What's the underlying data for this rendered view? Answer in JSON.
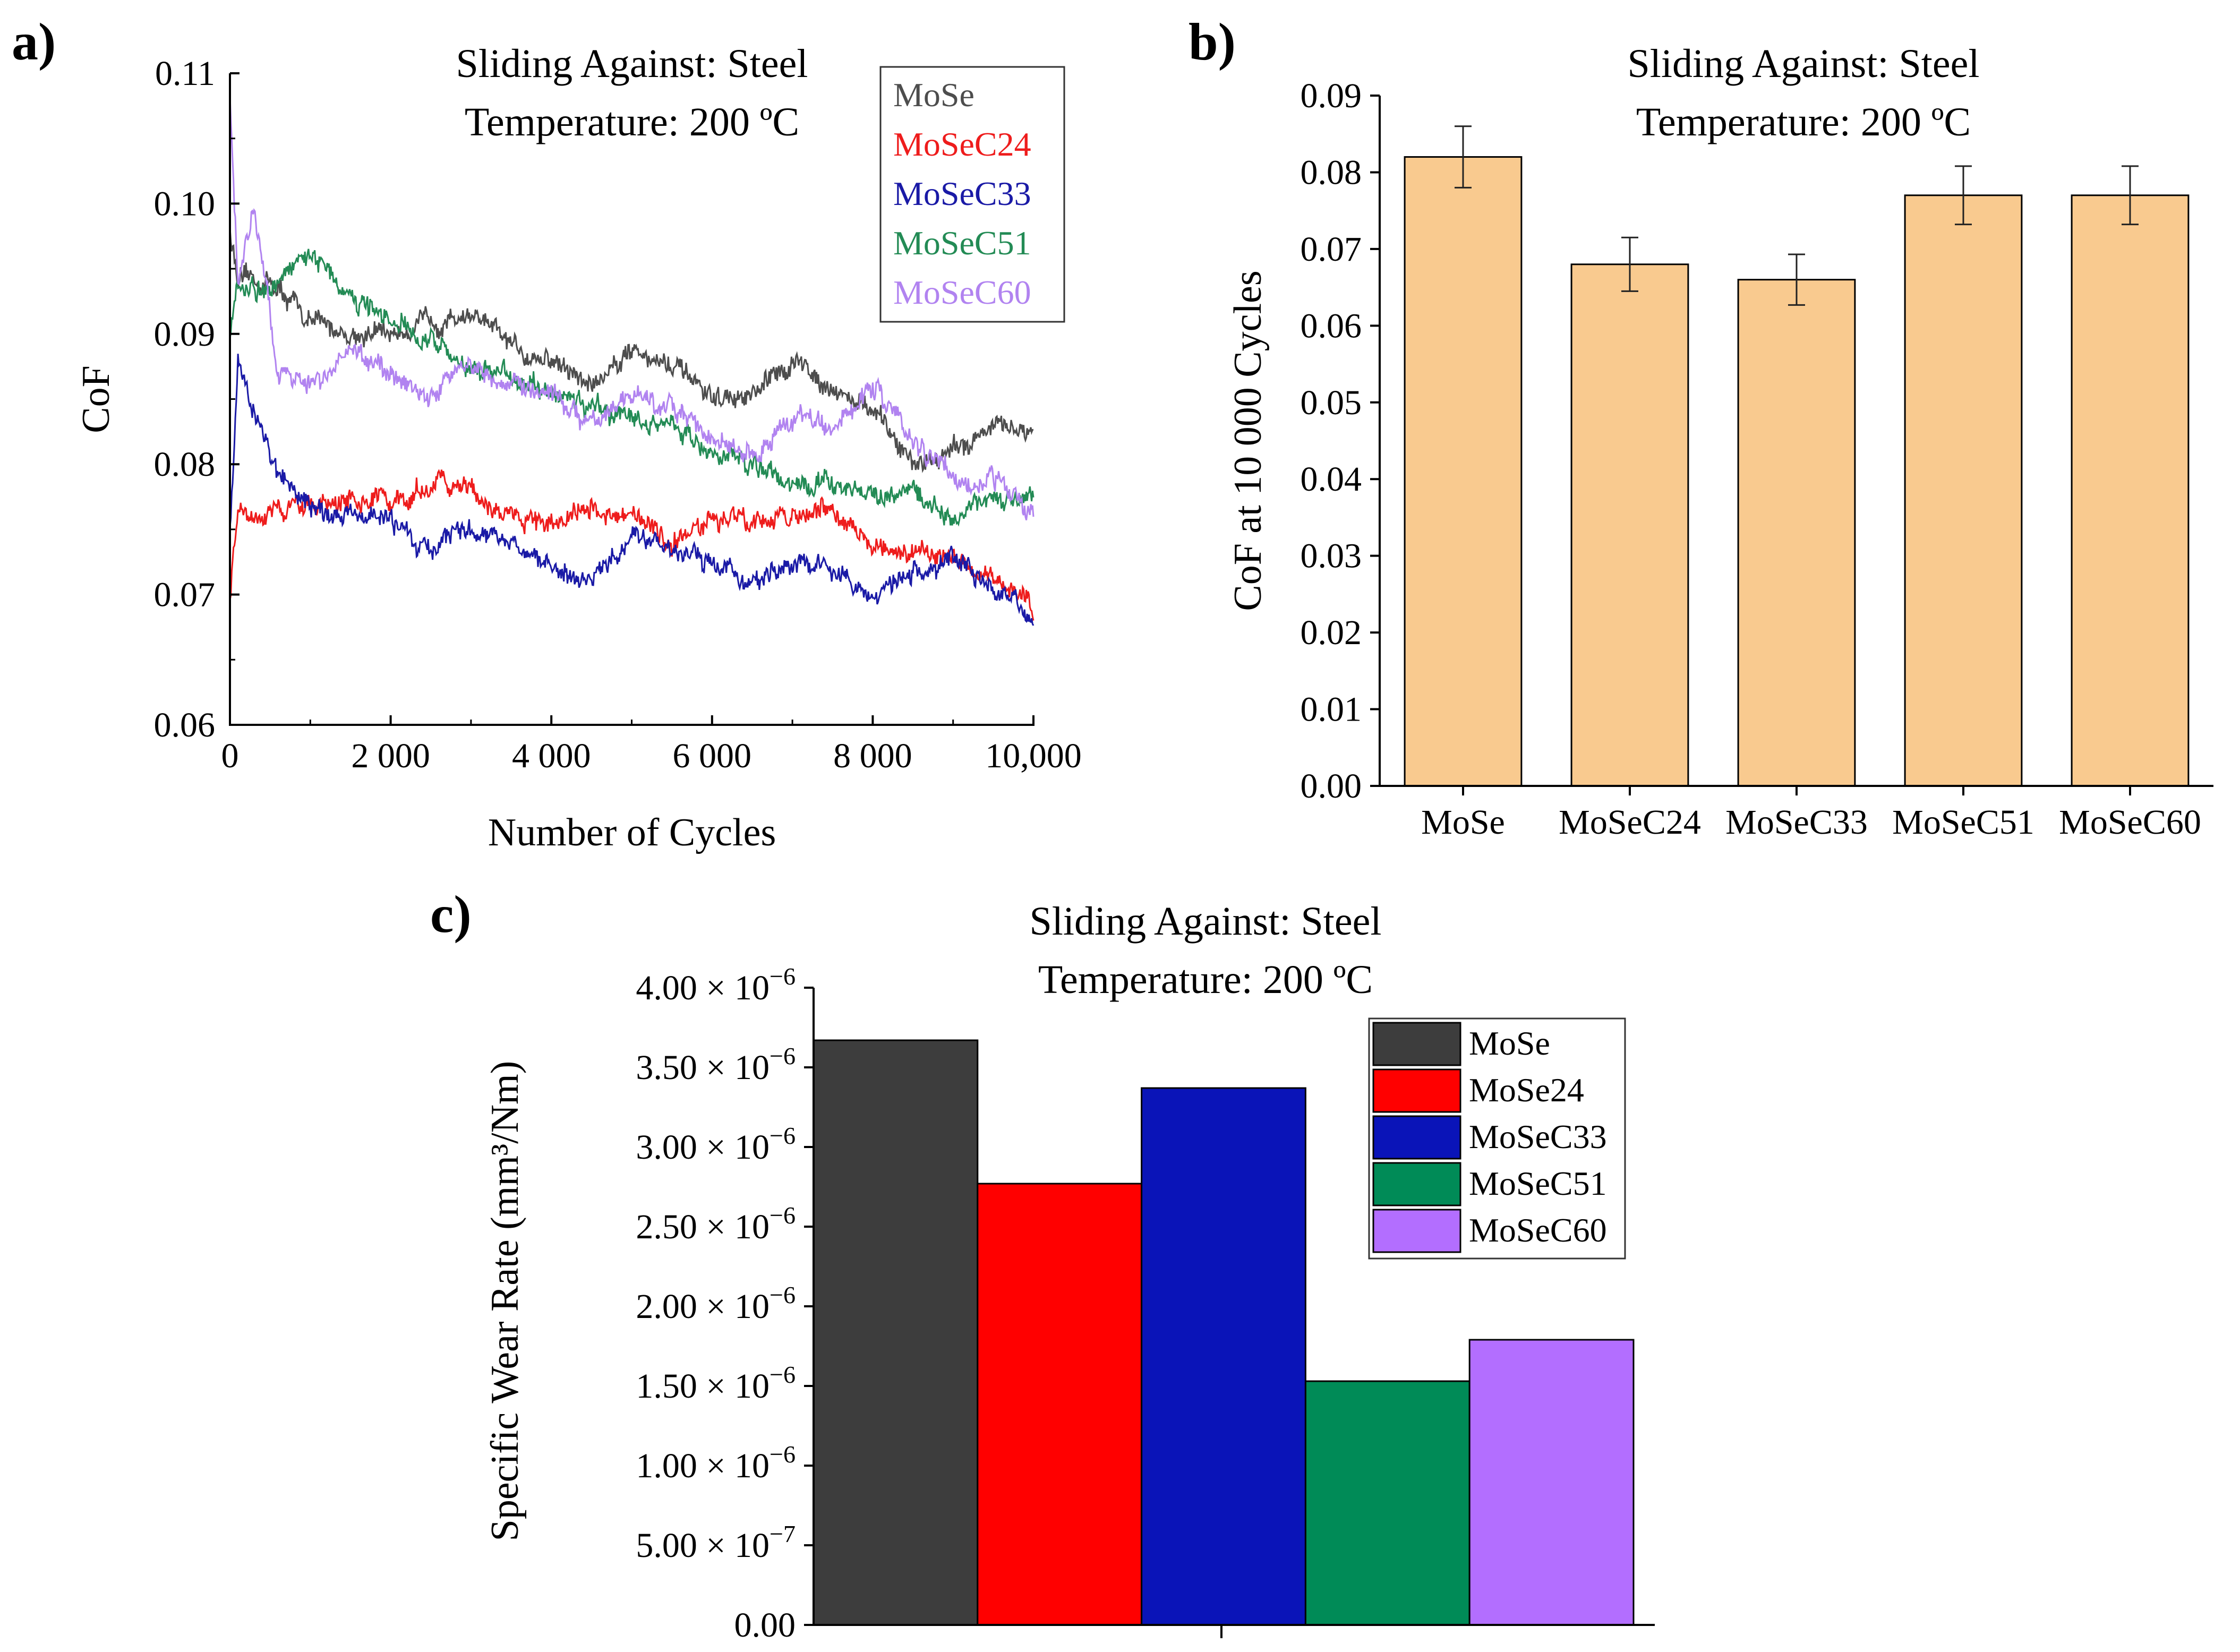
{
  "panels": {
    "a_letter": "a)",
    "b_letter": "b)",
    "c_letter": "c)"
  },
  "chart_data": [
    {
      "id": "a",
      "type": "line",
      "title": "Sliding Against: Steel",
      "subtitle": "Temperature: 200 ºC",
      "xlabel": "Number of Cycles",
      "ylabel": "CoF",
      "xlim": [
        0,
        10000
      ],
      "ylim": [
        0.06,
        0.11
      ],
      "xticks": [
        0,
        2000,
        4000,
        6000,
        8000,
        10000
      ],
      "xtick_labels": [
        "0",
        "2 000",
        "4 000",
        "6 000",
        "8 000",
        "10,000"
      ],
      "yticks": [
        0.06,
        0.07,
        0.08,
        0.09,
        0.1,
        0.11
      ],
      "ytick_labels": [
        "0.06",
        "0.07",
        "0.08",
        "0.09",
        "0.10",
        "0.11"
      ],
      "legend_position": "top-right",
      "series": [
        {
          "name": "MoSe",
          "color": "#4d4d4d",
          "x": [
            0,
            100,
            500,
            1000,
            1500,
            2000,
            2500,
            3000,
            3500,
            4000,
            4500,
            5000,
            5500,
            6000,
            6500,
            7000,
            7500,
            8000,
            8500,
            9000,
            9500,
            10000
          ],
          "y": [
            0.098,
            0.094,
            0.094,
            0.091,
            0.09,
            0.09,
            0.091,
            0.0915,
            0.089,
            0.088,
            0.086,
            0.089,
            0.0875,
            0.085,
            0.085,
            0.088,
            0.086,
            0.084,
            0.08,
            0.081,
            0.083,
            0.082
          ]
        },
        {
          "name": "MoSeC24",
          "color": "#ee1c1c",
          "x": [
            0,
            100,
            500,
            1000,
            1500,
            2000,
            2500,
            3000,
            3500,
            4000,
            4500,
            5000,
            5500,
            6000,
            6500,
            7000,
            7500,
            8000,
            8500,
            9000,
            9500,
            10000
          ],
          "y": [
            0.07,
            0.077,
            0.076,
            0.077,
            0.0775,
            0.077,
            0.0785,
            0.078,
            0.076,
            0.0755,
            0.0765,
            0.076,
            0.074,
            0.076,
            0.0755,
            0.076,
            0.0765,
            0.0735,
            0.073,
            0.0725,
            0.071,
            0.069
          ]
        },
        {
          "name": "MoSeC33",
          "color": "#1a1aa6",
          "x": [
            0,
            100,
            300,
            600,
            1000,
            1500,
            2000,
            2500,
            3000,
            3500,
            4000,
            4500,
            5000,
            5500,
            6000,
            6500,
            7000,
            7500,
            8000,
            8500,
            9000,
            9500,
            10000
          ],
          "y": [
            0.075,
            0.088,
            0.084,
            0.079,
            0.0765,
            0.076,
            0.0755,
            0.073,
            0.0755,
            0.074,
            0.0725,
            0.071,
            0.0745,
            0.0735,
            0.0725,
            0.0705,
            0.0725,
            0.072,
            0.0695,
            0.0715,
            0.073,
            0.071,
            0.068
          ]
        },
        {
          "name": "MoSeC51",
          "color": "#238b55",
          "x": [
            0,
            100,
            500,
            1000,
            1500,
            2000,
            2500,
            3000,
            3500,
            4000,
            4500,
            5000,
            5500,
            6000,
            6500,
            7000,
            7500,
            8000,
            8500,
            9000,
            9500,
            10000
          ],
          "y": [
            0.09,
            0.094,
            0.093,
            0.0965,
            0.093,
            0.091,
            0.0895,
            0.0875,
            0.087,
            0.0855,
            0.0845,
            0.0835,
            0.0825,
            0.081,
            0.08,
            0.0785,
            0.0785,
            0.0775,
            0.078,
            0.076,
            0.0775,
            0.0775
          ]
        },
        {
          "name": "MoSeC60",
          "color": "#b183f0",
          "x": [
            0,
            100,
            300,
            600,
            1000,
            1500,
            2000,
            2500,
            3000,
            3500,
            4000,
            4500,
            5000,
            5500,
            6000,
            6500,
            7000,
            7500,
            8000,
            8500,
            9000,
            9500,
            10000
          ],
          "y": [
            0.108,
            0.094,
            0.1,
            0.087,
            0.086,
            0.089,
            0.087,
            0.085,
            0.0875,
            0.086,
            0.0855,
            0.083,
            0.085,
            0.0845,
            0.082,
            0.0805,
            0.0835,
            0.0825,
            0.086,
            0.082,
            0.079,
            0.0785,
            0.0765
          ]
        }
      ]
    },
    {
      "id": "b",
      "type": "bar",
      "title": "Sliding Against: Steel",
      "subtitle": "Temperature: 200 ºC",
      "xlabel": "",
      "ylabel": "CoF at 10 000 Cycles",
      "categories": [
        "MoSe",
        "MoSeC24",
        "MoSeC33",
        "MoSeC51",
        "MoSeC60"
      ],
      "values": [
        0.082,
        0.068,
        0.066,
        0.077,
        0.077
      ],
      "errors": [
        0.004,
        0.0035,
        0.0033,
        0.0038,
        0.0038
      ],
      "ylim": [
        0.0,
        0.09
      ],
      "yticks": [
        0.0,
        0.01,
        0.02,
        0.03,
        0.04,
        0.05,
        0.06,
        0.07,
        0.08,
        0.09
      ],
      "ytick_labels": [
        "0.00",
        "0.01",
        "0.02",
        "0.03",
        "0.04",
        "0.05",
        "0.06",
        "0.07",
        "0.08",
        "0.09"
      ],
      "bar_color": "#f9ca8f"
    },
    {
      "id": "c",
      "type": "bar",
      "title": "Sliding Against: Steel",
      "subtitle": "Temperature: 200 ºC",
      "xlabel": "",
      "ylabel": "Specific Wear Rate (mm³/Nm)",
      "categories": [
        "MoSe",
        "MoSe24",
        "MoSeC33",
        "MoSeC51",
        "MoSeC60"
      ],
      "values": [
        3.67e-06,
        2.77e-06,
        3.37e-06,
        1.53e-06,
        1.79e-06
      ],
      "colors": [
        "#3d3d3d",
        "#ff0000",
        "#0a14b8",
        "#008b57",
        "#b36eff"
      ],
      "ylim": [
        0,
        4e-06
      ],
      "yticks": [
        0,
        5e-07,
        1e-06,
        1.5e-06,
        2e-06,
        2.5e-06,
        3e-06,
        3.5e-06,
        4e-06
      ],
      "ytick_mantissas": [
        "0.00",
        "5.00 × 10",
        "1.00 × 10",
        "1.50 × 10",
        "2.00 × 10",
        "2.50 × 10",
        "3.00 × 10",
        "3.50 × 10",
        "4.00 × 10"
      ],
      "ytick_exponents": [
        "",
        "−7",
        "−6",
        "−6",
        "−6",
        "−6",
        "−6",
        "−6",
        "−6"
      ],
      "legend_position": "top-right"
    }
  ]
}
